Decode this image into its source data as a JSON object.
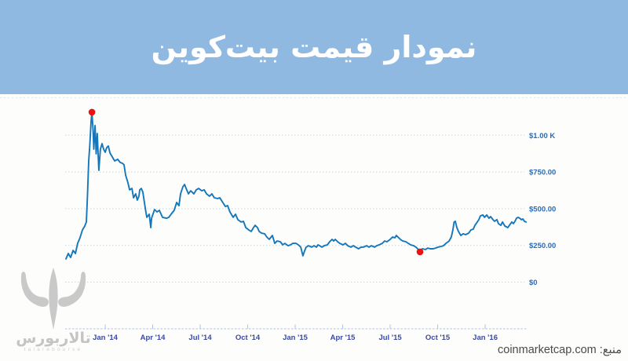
{
  "header": {
    "title": "نمودار قیمت بیت‌کوین",
    "background_color": "#8fb9e0"
  },
  "source": {
    "label": "منبع:",
    "domain": "coinmarketcap.com"
  },
  "logo": {
    "name_fa": "تالاربورس",
    "name_en": "talarebourse",
    "icon": "bull-head-icon",
    "color": "#c9c9c9"
  },
  "chart_data": {
    "type": "line",
    "title": "نمودار قیمت بیت‌کوین",
    "series_note": "Bitcoin price in USD, ~Oct 2013 to ~Mar 2016; x stored as months relative to Jan 2014",
    "x_tick_labels": [
      "Jan '14",
      "Apr '14",
      "Jul '14",
      "Oct '14",
      "Jan '15",
      "Apr '15",
      "Jul '15",
      "Oct '15",
      "Jan '16"
    ],
    "x_tick_months": [
      0,
      3,
      6,
      9,
      12,
      15,
      18,
      21,
      24
    ],
    "y_tick_labels": [
      "$1.00 K",
      "$750.00",
      "$500.00",
      "$250.00",
      "$0"
    ],
    "y_tick_values": [
      1000,
      750,
      500,
      250,
      0
    ],
    "x_range_months": [
      -2.5,
      26.6
    ],
    "ylim": [
      0,
      1250
    ],
    "grid": true,
    "legend": "none",
    "line_color": "#1577bb",
    "marker_color": "#ea1212",
    "grid_color": "#c7d7eb",
    "axis_line_color": "#aec2e4",
    "y_label_color": "#2b6cb5",
    "x_label_color": "#3a4aa3",
    "series": [
      {
        "name": "Bitcoin price (USD)",
        "points": [
          [
            -2.48,
            158
          ],
          [
            -2.33,
            195
          ],
          [
            -2.18,
            168
          ],
          [
            -2.03,
            216
          ],
          [
            -1.88,
            195
          ],
          [
            -1.74,
            264
          ],
          [
            -1.59,
            302
          ],
          [
            -1.44,
            355
          ],
          [
            -1.29,
            382
          ],
          [
            -1.19,
            409
          ],
          [
            -1.12,
            585
          ],
          [
            -1.04,
            825
          ],
          [
            -0.97,
            932
          ],
          [
            -0.89,
            1092
          ],
          [
            -0.84,
            1157
          ],
          [
            -0.77,
            1039
          ],
          [
            -0.72,
            905
          ],
          [
            -0.64,
            1066
          ],
          [
            -0.57,
            873
          ],
          [
            -0.5,
            1012
          ],
          [
            -0.4,
            761
          ],
          [
            -0.3,
            905
          ],
          [
            -0.2,
            943
          ],
          [
            -0.1,
            905
          ],
          [
            0,
            884
          ],
          [
            0.1,
            916
          ],
          [
            0.2,
            927
          ],
          [
            0.3,
            879
          ],
          [
            0.45,
            852
          ],
          [
            0.6,
            825
          ],
          [
            0.79,
            836
          ],
          [
            0.94,
            815
          ],
          [
            1.09,
            809
          ],
          [
            1.19,
            799
          ],
          [
            1.29,
            729
          ],
          [
            1.44,
            676
          ],
          [
            1.54,
            628
          ],
          [
            1.69,
            638
          ],
          [
            1.79,
            574
          ],
          [
            1.93,
            601
          ],
          [
            2.03,
            558
          ],
          [
            2.13,
            585
          ],
          [
            2.18,
            628
          ],
          [
            2.28,
            638
          ],
          [
            2.38,
            612
          ],
          [
            2.53,
            505
          ],
          [
            2.63,
            441
          ],
          [
            2.78,
            462
          ],
          [
            2.88,
            371
          ],
          [
            2.93,
            435
          ],
          [
            3.12,
            494
          ],
          [
            3.27,
            478
          ],
          [
            3.42,
            489
          ],
          [
            3.62,
            441
          ],
          [
            3.87,
            435
          ],
          [
            4.02,
            441
          ],
          [
            4.16,
            462
          ],
          [
            4.36,
            489
          ],
          [
            4.51,
            542
          ],
          [
            4.66,
            521
          ],
          [
            4.76,
            601
          ],
          [
            4.91,
            649
          ],
          [
            5.01,
            665
          ],
          [
            5.11,
            638
          ],
          [
            5.26,
            601
          ],
          [
            5.4,
            622
          ],
          [
            5.6,
            601
          ],
          [
            5.75,
            628
          ],
          [
            5.9,
            638
          ],
          [
            6.1,
            622
          ],
          [
            6.25,
            628
          ],
          [
            6.4,
            601
          ],
          [
            6.59,
            585
          ],
          [
            6.74,
            601
          ],
          [
            6.89,
            574
          ],
          [
            7.09,
            569
          ],
          [
            7.24,
            574
          ],
          [
            7.39,
            548
          ],
          [
            7.59,
            515
          ],
          [
            7.73,
            521
          ],
          [
            7.88,
            478
          ],
          [
            8.08,
            441
          ],
          [
            8.23,
            462
          ],
          [
            8.38,
            425
          ],
          [
            8.58,
            409
          ],
          [
            8.73,
            414
          ],
          [
            8.88,
            371
          ],
          [
            9.07,
            355
          ],
          [
            9.22,
            345
          ],
          [
            9.37,
            371
          ],
          [
            9.47,
            387
          ],
          [
            9.62,
            371
          ],
          [
            9.72,
            345
          ],
          [
            9.87,
            334
          ],
          [
            10.07,
            329
          ],
          [
            10.21,
            307
          ],
          [
            10.36,
            291
          ],
          [
            10.56,
            318
          ],
          [
            10.71,
            264
          ],
          [
            10.86,
            280
          ],
          [
            11.06,
            275
          ],
          [
            11.21,
            254
          ],
          [
            11.35,
            264
          ],
          [
            11.55,
            248
          ],
          [
            11.7,
            254
          ],
          [
            11.85,
            264
          ],
          [
            12.05,
            264
          ],
          [
            12.2,
            254
          ],
          [
            12.35,
            238
          ],
          [
            12.49,
            179
          ],
          [
            12.59,
            211
          ],
          [
            12.69,
            238
          ],
          [
            12.84,
            248
          ],
          [
            13.04,
            238
          ],
          [
            13.19,
            248
          ],
          [
            13.34,
            238
          ],
          [
            13.44,
            254
          ],
          [
            13.54,
            248
          ],
          [
            13.69,
            238
          ],
          [
            13.83,
            248
          ],
          [
            14.03,
            254
          ],
          [
            14.18,
            275
          ],
          [
            14.33,
            291
          ],
          [
            14.43,
            280
          ],
          [
            14.53,
            291
          ],
          [
            14.68,
            275
          ],
          [
            14.82,
            264
          ],
          [
            15.02,
            254
          ],
          [
            15.17,
            264
          ],
          [
            15.32,
            248
          ],
          [
            15.52,
            238
          ],
          [
            15.67,
            248
          ],
          [
            15.82,
            238
          ],
          [
            16.01,
            227
          ],
          [
            16.16,
            238
          ],
          [
            16.31,
            238
          ],
          [
            16.51,
            248
          ],
          [
            16.66,
            238
          ],
          [
            16.81,
            248
          ],
          [
            17.01,
            238
          ],
          [
            17.15,
            248
          ],
          [
            17.3,
            254
          ],
          [
            17.5,
            264
          ],
          [
            17.65,
            280
          ],
          [
            17.8,
            275
          ],
          [
            18,
            291
          ],
          [
            18.15,
            307
          ],
          [
            18.3,
            302
          ],
          [
            18.39,
            318
          ],
          [
            18.49,
            307
          ],
          [
            18.64,
            291
          ],
          [
            18.79,
            280
          ],
          [
            18.99,
            275
          ],
          [
            19.14,
            264
          ],
          [
            19.29,
            254
          ],
          [
            19.48,
            248
          ],
          [
            19.63,
            238
          ],
          [
            19.78,
            222
          ],
          [
            19.88,
            206
          ],
          [
            20.03,
            227
          ],
          [
            20.23,
            222
          ],
          [
            20.38,
            232
          ],
          [
            20.53,
            227
          ],
          [
            20.72,
            227
          ],
          [
            20.87,
            232
          ],
          [
            21.02,
            238
          ],
          [
            21.22,
            243
          ],
          [
            21.37,
            248
          ],
          [
            21.52,
            264
          ],
          [
            21.72,
            280
          ],
          [
            21.86,
            307
          ],
          [
            21.96,
            355
          ],
          [
            22.04,
            409
          ],
          [
            22.11,
            414
          ],
          [
            22.21,
            371
          ],
          [
            22.31,
            345
          ],
          [
            22.46,
            318
          ],
          [
            22.61,
            329
          ],
          [
            22.76,
            323
          ],
          [
            22.96,
            334
          ],
          [
            23.1,
            355
          ],
          [
            23.25,
            361
          ],
          [
            23.35,
            387
          ],
          [
            23.5,
            409
          ],
          [
            23.6,
            425
          ],
          [
            23.7,
            451
          ],
          [
            23.85,
            457
          ],
          [
            23.95,
            441
          ],
          [
            24.1,
            457
          ],
          [
            24.24,
            435
          ],
          [
            24.34,
            446
          ],
          [
            24.49,
            425
          ],
          [
            24.59,
            414
          ],
          [
            24.74,
            425
          ],
          [
            24.84,
            398
          ],
          [
            24.99,
            387
          ],
          [
            25.09,
            409
          ],
          [
            25.24,
            382
          ],
          [
            25.43,
            371
          ],
          [
            25.53,
            387
          ],
          [
            25.68,
            409
          ],
          [
            25.78,
            398
          ],
          [
            25.88,
            414
          ],
          [
            25.98,
            435
          ],
          [
            26.08,
            441
          ],
          [
            26.18,
            435
          ],
          [
            26.28,
            425
          ],
          [
            26.38,
            430
          ],
          [
            26.48,
            414
          ],
          [
            26.58,
            409
          ]
        ]
      }
    ],
    "markers": [
      {
        "month": -0.84,
        "price": 1157
      },
      {
        "month": 19.88,
        "price": 206
      }
    ]
  }
}
